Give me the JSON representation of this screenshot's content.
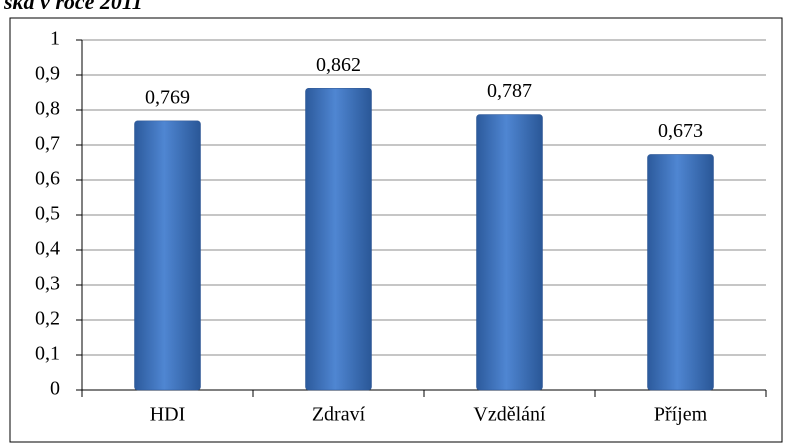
{
  "chart_data": {
    "type": "bar",
    "title": "ská v roce 2011",
    "categories": [
      "HDI",
      "Zdraví",
      "Vzdělání",
      "Příjem"
    ],
    "values": [
      0.769,
      0.862,
      0.787,
      0.673
    ],
    "value_labels": [
      "0,769",
      "0,862",
      "0,787",
      "0,673"
    ],
    "color": "#3f74c0",
    "ylim": [
      0,
      1
    ],
    "yticks": [
      0,
      {
        "value": 0.1,
        "label": "0,1"
      },
      {
        "value": 0.2,
        "label": "0,2"
      },
      {
        "value": 0.3,
        "label": "0,3"
      },
      {
        "value": 0.4,
        "label": "0,4"
      },
      {
        "value": 0.5,
        "label": "0,5"
      },
      {
        "value": 0.6,
        "label": "0,6"
      },
      {
        "value": 0.7,
        "label": "0,7"
      },
      {
        "value": 0.8,
        "label": "0,8"
      },
      {
        "value": 0.9,
        "label": "0,9"
      },
      1
    ],
    "grid": true
  }
}
